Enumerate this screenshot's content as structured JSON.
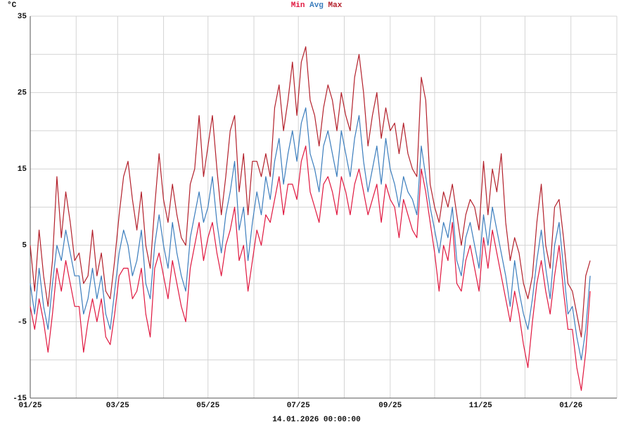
{
  "chart_data": {
    "type": "line",
    "title": [
      "Min",
      "Avg",
      "Max"
    ],
    "y_unit": "°C",
    "footer": "14.01.2026 00:00:00",
    "x": [
      0,
      3,
      6,
      9,
      12,
      15,
      18,
      21,
      24,
      27,
      30,
      33,
      36,
      39,
      42,
      45,
      48,
      51,
      54,
      57,
      60,
      63,
      66,
      69,
      72,
      75,
      78,
      81,
      84,
      87,
      90,
      93,
      96,
      99,
      102,
      105,
      108,
      111,
      114,
      117,
      120,
      123,
      126,
      129,
      132,
      135,
      138,
      141,
      144,
      147,
      150,
      153,
      156,
      159,
      162,
      165,
      168,
      171,
      174,
      177,
      180,
      183,
      186,
      189,
      192,
      195,
      198,
      201,
      204,
      207,
      210,
      213,
      216,
      219,
      222,
      225,
      228,
      231,
      234,
      237,
      240,
      243,
      246,
      249,
      252,
      255,
      258,
      261,
      264,
      267,
      270,
      273,
      276,
      279,
      282,
      285,
      288,
      291,
      294,
      297,
      300,
      303,
      306,
      309,
      312,
      315,
      318,
      321,
      324,
      327,
      330,
      333,
      336,
      339,
      342,
      345,
      348,
      351,
      354,
      357,
      360,
      363,
      366,
      369,
      372,
      375,
      378
    ],
    "xlim": [
      0,
      396
    ],
    "xticks": [
      {
        "value": 0,
        "label": "01/25"
      },
      {
        "value": 59,
        "label": "03/25"
      },
      {
        "value": 120,
        "label": "05/25"
      },
      {
        "value": 181,
        "label": "07/25"
      },
      {
        "value": 243,
        "label": "09/25"
      },
      {
        "value": 304,
        "label": "11/25"
      },
      {
        "value": 365,
        "label": "01/26"
      }
    ],
    "xminor": [
      31,
      90,
      151,
      212,
      273,
      334
    ],
    "ylim": [
      -15,
      35
    ],
    "yticks": [
      35,
      25,
      15,
      5,
      -5,
      -15
    ],
    "yminor": [
      30,
      20,
      10,
      0,
      -10
    ],
    "grid": true,
    "series": [
      {
        "name": "Min",
        "color": "#e0173f",
        "values": [
          -3,
          -6,
          -2,
          -5,
          -9,
          -4,
          2,
          -1,
          3,
          0,
          -3,
          -3,
          -9,
          -5,
          -2,
          -5,
          -2,
          -7,
          -8,
          -4,
          1,
          2,
          2,
          -2,
          -1,
          2,
          -4,
          -7,
          2,
          4,
          1,
          -2,
          3,
          0,
          -3,
          -5,
          2,
          5,
          8,
          3,
          6,
          8,
          4,
          1,
          5,
          7,
          10,
          3,
          5,
          -1,
          3,
          7,
          5,
          9,
          8,
          11,
          14,
          9,
          13,
          13,
          11,
          16,
          18,
          12,
          10,
          8,
          13,
          14,
          12,
          9,
          14,
          12,
          9,
          13,
          15,
          12,
          9,
          11,
          13,
          8,
          13,
          11,
          10,
          6,
          11,
          9,
          7,
          6,
          15,
          12,
          8,
          4,
          -1,
          5,
          3,
          8,
          0,
          -1,
          3,
          5,
          2,
          -1,
          6,
          2,
          7,
          4,
          1,
          -2,
          -5,
          -1,
          -4,
          -8,
          -11,
          -5,
          0,
          3,
          -1,
          -4,
          1,
          5,
          -1,
          -6,
          -6,
          -11,
          -14,
          -9,
          -1
        ]
      },
      {
        "name": "Avg",
        "color": "#3b7dbd",
        "values": [
          0,
          -4,
          2,
          -3,
          -6,
          0,
          5,
          3,
          7,
          4,
          1,
          1,
          -4,
          -2,
          2,
          -2,
          1,
          -4,
          -6,
          -1,
          4,
          7,
          5,
          1,
          3,
          7,
          0,
          -2,
          5,
          9,
          5,
          2,
          8,
          4,
          1,
          -1,
          6,
          9,
          12,
          8,
          10,
          14,
          8,
          4,
          9,
          12,
          16,
          7,
          10,
          3,
          8,
          12,
          9,
          14,
          11,
          16,
          19,
          13,
          17,
          20,
          16,
          21,
          23,
          17,
          15,
          12,
          18,
          20,
          17,
          14,
          20,
          17,
          14,
          19,
          22,
          16,
          12,
          15,
          18,
          13,
          19,
          15,
          13,
          10,
          14,
          12,
          11,
          9,
          18,
          14,
          10,
          7,
          4,
          8,
          6,
          10,
          3,
          1,
          6,
          8,
          5,
          2,
          9,
          5,
          10,
          7,
          4,
          1,
          -3,
          3,
          -1,
          -4,
          -6,
          -2,
          3,
          7,
          2,
          -2,
          5,
          8,
          2,
          -4,
          -3,
          -7,
          -10,
          -6,
          1
        ]
      },
      {
        "name": "Max",
        "color": "#b3202b",
        "values": [
          5,
          -1,
          7,
          1,
          -3,
          3,
          14,
          6,
          12,
          8,
          3,
          4,
          0,
          1,
          7,
          1,
          4,
          -1,
          -2,
          3,
          9,
          14,
          16,
          11,
          7,
          12,
          5,
          2,
          10,
          17,
          11,
          8,
          13,
          9,
          6,
          5,
          13,
          15,
          22,
          14,
          18,
          22,
          15,
          9,
          14,
          20,
          22,
          12,
          17,
          9,
          16,
          16,
          14,
          17,
          14,
          23,
          26,
          20,
          24,
          29,
          22,
          29,
          31,
          24,
          22,
          18,
          23,
          26,
          24,
          20,
          25,
          22,
          20,
          27,
          30,
          25,
          18,
          22,
          25,
          19,
          23,
          20,
          21,
          17,
          21,
          17,
          15,
          14,
          27,
          24,
          13,
          10,
          8,
          12,
          10,
          13,
          9,
          5,
          9,
          11,
          10,
          7,
          16,
          9,
          15,
          12,
          17,
          8,
          3,
          6,
          4,
          0,
          -2,
          1,
          8,
          13,
          5,
          2,
          10,
          11,
          6,
          0,
          -1,
          -4,
          -7,
          1,
          3
        ]
      }
    ]
  }
}
